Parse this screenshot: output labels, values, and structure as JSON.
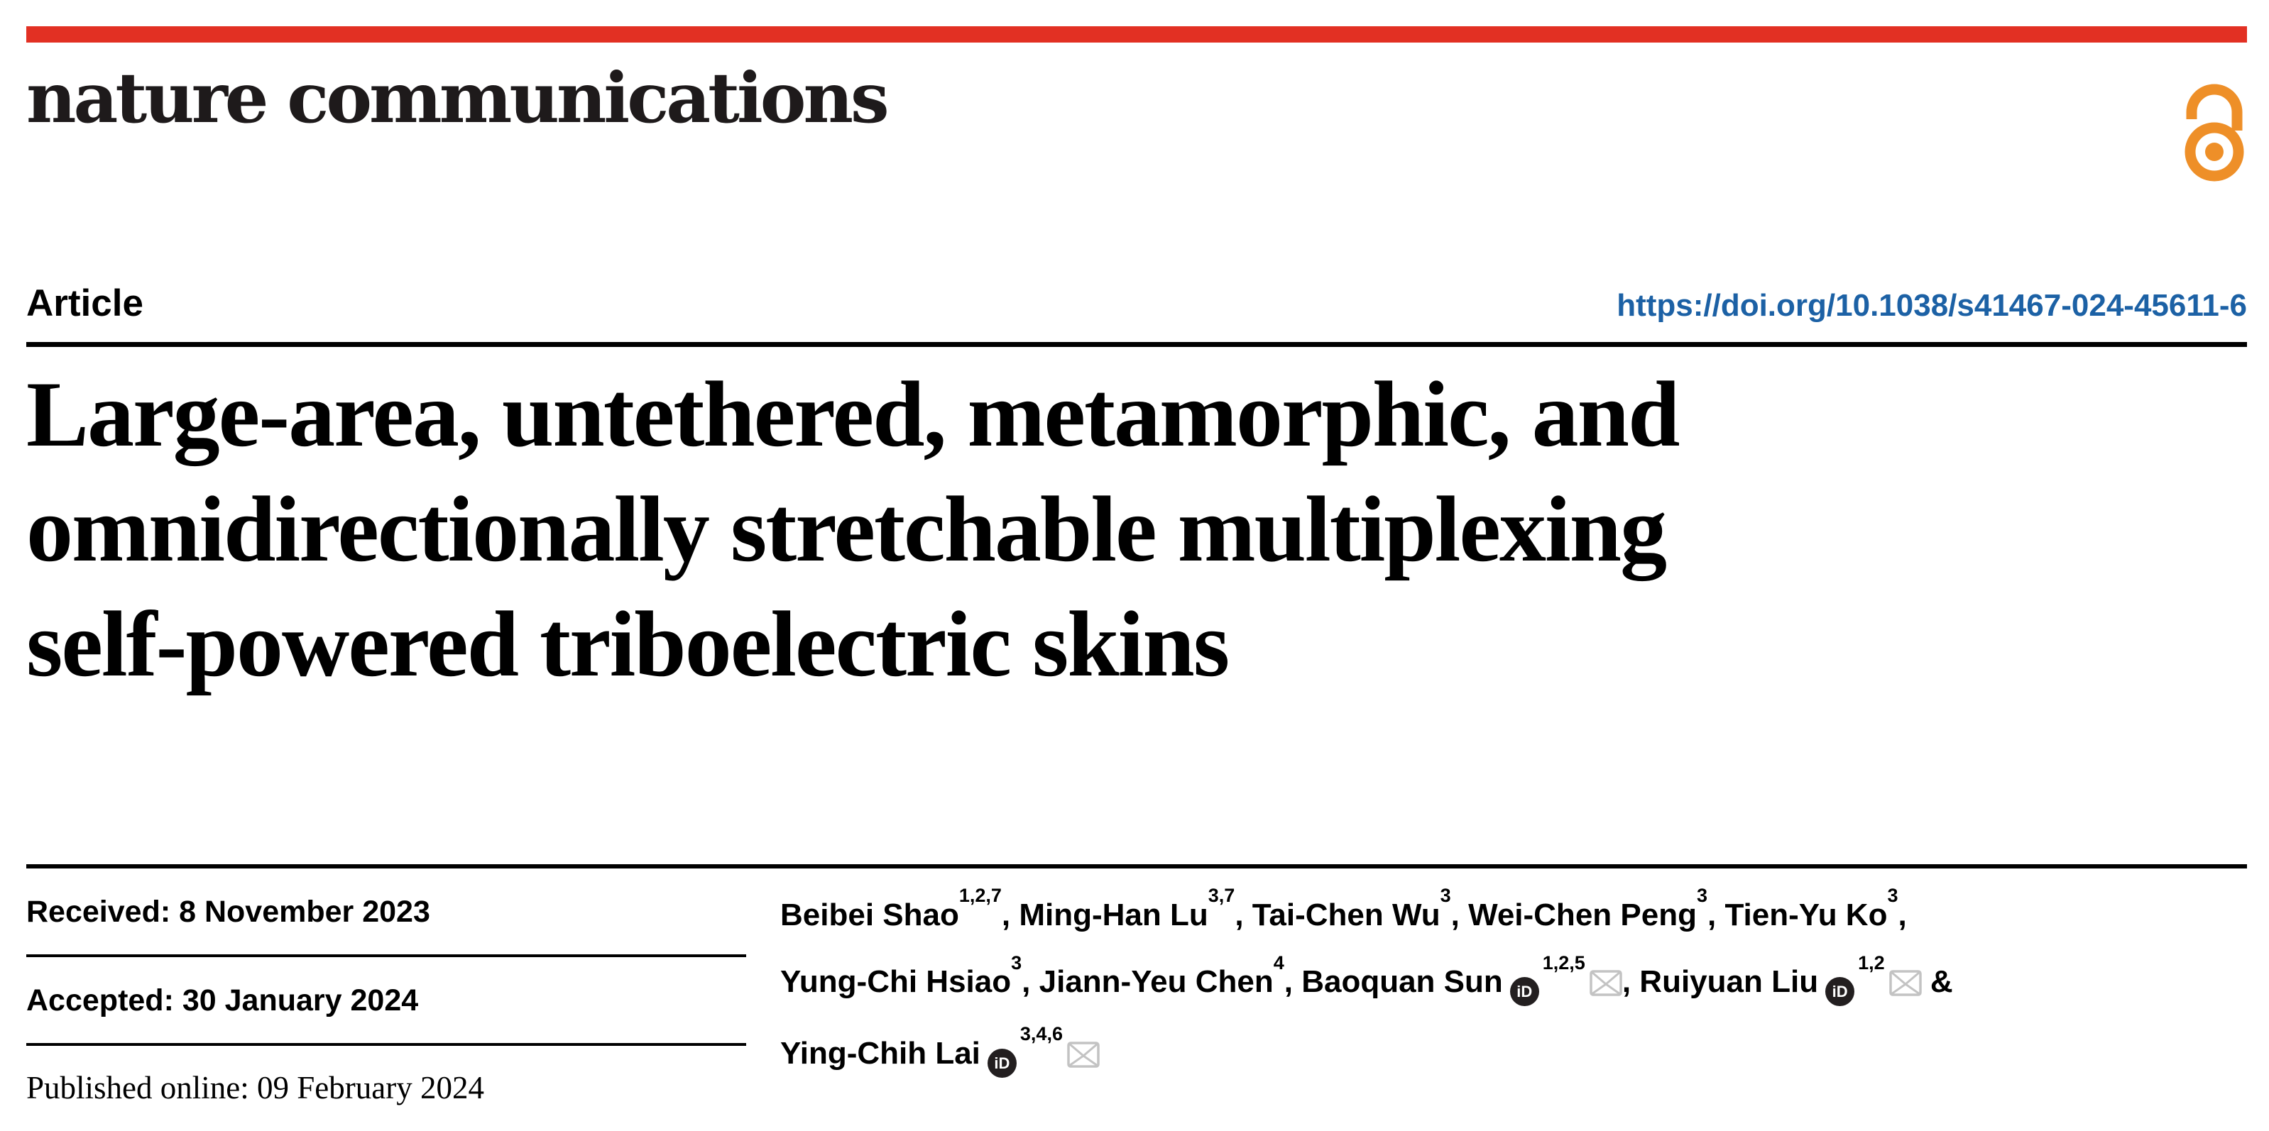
{
  "masthead": {
    "journal_name": "nature communications",
    "accent_bar_color": "#e23023",
    "open_access_color": "#ee8f28"
  },
  "article_bar": {
    "article_label": "Article",
    "doi_link": "https://doi.org/10.1038/s41467-024-45611-6",
    "doi_color": "#1c61a5"
  },
  "title": {
    "lines": [
      "Large-area, untethered, metamorphic, and",
      "omnidirectionally stretchable multiplexing",
      "self-powered triboelectric skins"
    ]
  },
  "dates": [
    {
      "label": "Received:",
      "value": "8 November 2023"
    },
    {
      "label": "Accepted:",
      "value": "30 January 2024"
    },
    {
      "label": "Published online:",
      "value": "09 February 2024"
    }
  ],
  "authors": {
    "lines": [
      [
        {
          "name": "Beibei Shao",
          "sup": "1,2,7",
          "trail": ","
        },
        {
          "name": "Ming-Han Lu",
          "sup": "3,7",
          "trail": ","
        },
        {
          "name": "Tai-Chen Wu",
          "sup": "3",
          "trail": ","
        },
        {
          "name": "Wei-Chen Peng",
          "sup": "3",
          "trail": ","
        },
        {
          "name": "Tien-Yu Ko",
          "sup": "3",
          "trail": ","
        }
      ],
      [
        {
          "name": "Yung-Chi Hsiao",
          "sup": "3",
          "trail": ","
        },
        {
          "name": "Jiann-Yeu Chen",
          "sup": "4",
          "trail": ","
        },
        {
          "name": "Baoquan Sun",
          "orcid": true,
          "sup": "1,2,5",
          "email": true,
          "trail": ","
        },
        {
          "name": "Ruiyuan Liu",
          "orcid": true,
          "sup": "1,2",
          "email": true,
          "trail": " &"
        }
      ],
      [
        {
          "name": "Ying-Chih Lai",
          "orcid": true,
          "sup": "3,4,6",
          "email": true,
          "trail": ""
        }
      ]
    ],
    "orcid_label": "iD"
  }
}
